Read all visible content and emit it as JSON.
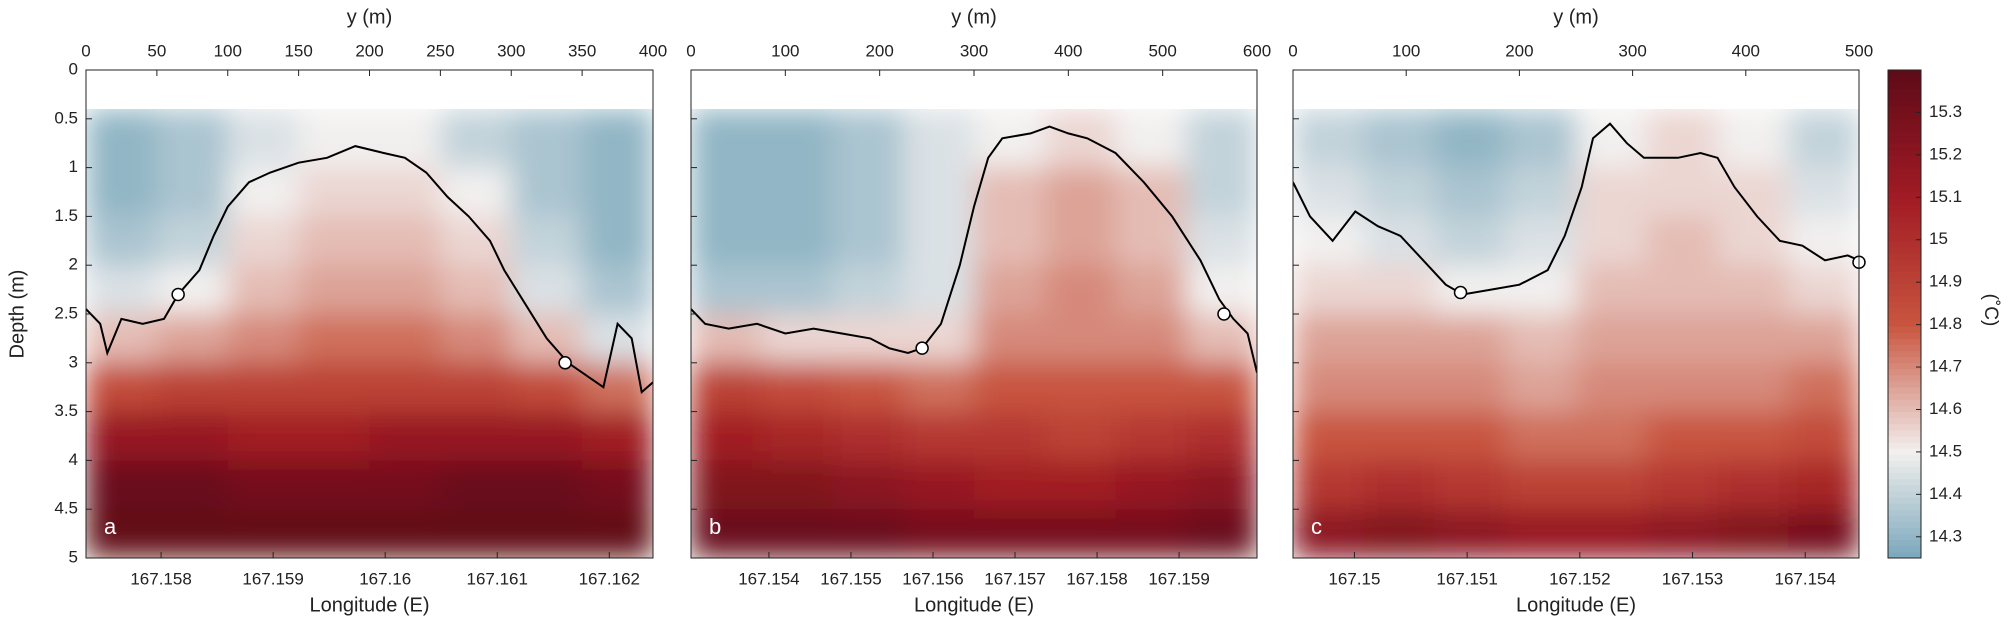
{
  "chart_data": [
    {
      "type": "heatmap",
      "panel_label": "a",
      "xlabel": "y (m)",
      "x2label": "Longitude (E)",
      "ylabel": "Depth (m)",
      "ytick_labels": true,
      "xlim": [
        0,
        400
      ],
      "xticks": [
        0,
        50,
        100,
        150,
        200,
        250,
        300,
        350,
        400
      ],
      "lonlim": [
        167.15733,
        167.16239
      ],
      "lonticks": [
        167.158,
        167.159,
        167.16,
        167.161,
        167.162
      ],
      "ylim": [
        0,
        5
      ],
      "yticks": [
        0,
        0.5,
        1,
        1.5,
        2,
        2.5,
        3,
        3.5,
        4,
        4.5,
        5
      ],
      "x_edges": [
        0,
        50,
        100,
        150,
        200,
        250,
        300,
        350,
        400
      ],
      "depth_edges": [
        0.4,
        1,
        1.5,
        2,
        2.5,
        3,
        3.5,
        4,
        4.5,
        5
      ],
      "temperature": [
        [
          14.3,
          14.35,
          14.45,
          14.5,
          14.5,
          14.4,
          14.35,
          14.3
        ],
        [
          14.3,
          14.35,
          14.5,
          14.55,
          14.55,
          14.5,
          14.35,
          14.3
        ],
        [
          14.35,
          14.4,
          14.55,
          14.6,
          14.6,
          14.55,
          14.4,
          14.3
        ],
        [
          14.45,
          14.5,
          14.6,
          14.65,
          14.65,
          14.6,
          14.45,
          14.35
        ],
        [
          14.6,
          14.65,
          14.7,
          14.75,
          14.75,
          14.7,
          14.6,
          14.45
        ],
        [
          14.85,
          14.9,
          14.9,
          14.9,
          14.9,
          14.9,
          14.85,
          14.75
        ],
        [
          15.15,
          15.15,
          15.1,
          15.1,
          15.15,
          15.15,
          15.15,
          15.1
        ],
        [
          15.35,
          15.35,
          15.3,
          15.3,
          15.3,
          15.35,
          15.35,
          15.3
        ],
        [
          15.38,
          15.38,
          15.38,
          15.38,
          15.38,
          15.38,
          15.38,
          15.38
        ]
      ],
      "contour": {
        "color": "#000000",
        "x": [
          0,
          10,
          15,
          25,
          40,
          55,
          65,
          80,
          90,
          100,
          115,
          130,
          150,
          170,
          190,
          210,
          225,
          240,
          255,
          270,
          285,
          295,
          310,
          325,
          340,
          355,
          365,
          375,
          385,
          392,
          400
        ],
        "depth": [
          2.45,
          2.6,
          2.9,
          2.55,
          2.6,
          2.55,
          2.3,
          2.05,
          1.7,
          1.4,
          1.15,
          1.05,
          0.95,
          0.9,
          0.78,
          0.85,
          0.9,
          1.05,
          1.3,
          1.5,
          1.75,
          2.05,
          2.4,
          2.75,
          3.0,
          3.15,
          3.25,
          2.6,
          2.75,
          3.3,
          3.2
        ]
      },
      "markers": {
        "x": [
          65,
          338
        ],
        "depth": [
          2.3,
          3.0
        ]
      }
    },
    {
      "type": "heatmap",
      "panel_label": "b",
      "xlabel": "y (m)",
      "x2label": "Longitude (E)",
      "ytick_labels": false,
      "xlim": [
        0,
        600
      ],
      "xticks": [
        0,
        100,
        200,
        300,
        400,
        500,
        600
      ],
      "lonlim": [
        167.15305,
        167.15995
      ],
      "lonticks": [
        167.154,
        167.155,
        167.156,
        167.157,
        167.158,
        167.159
      ],
      "ylim": [
        0,
        5
      ],
      "yticks": [
        0,
        0.5,
        1,
        1.5,
        2,
        2.5,
        3,
        3.5,
        4,
        4.5,
        5
      ],
      "x_edges": [
        0,
        75,
        150,
        225,
        300,
        375,
        450,
        525,
        600
      ],
      "depth_edges": [
        0.4,
        1,
        1.5,
        2,
        2.5,
        3,
        3.5,
        4,
        4.5,
        5
      ],
      "temperature": [
        [
          14.3,
          14.3,
          14.35,
          14.45,
          14.5,
          14.55,
          14.5,
          14.4
        ],
        [
          14.3,
          14.3,
          14.35,
          14.45,
          14.6,
          14.65,
          14.6,
          14.4
        ],
        [
          14.3,
          14.3,
          14.35,
          14.45,
          14.6,
          14.65,
          14.6,
          14.45
        ],
        [
          14.35,
          14.35,
          14.4,
          14.45,
          14.65,
          14.7,
          14.65,
          14.5
        ],
        [
          14.6,
          14.55,
          14.55,
          14.55,
          14.7,
          14.7,
          14.7,
          14.6
        ],
        [
          14.9,
          14.85,
          14.8,
          14.75,
          14.8,
          14.8,
          14.8,
          14.8
        ],
        [
          15.1,
          15.05,
          15.0,
          14.95,
          14.95,
          14.9,
          14.95,
          15.0
        ],
        [
          15.25,
          15.25,
          15.2,
          15.15,
          15.1,
          15.1,
          15.15,
          15.2
        ],
        [
          15.35,
          15.35,
          15.35,
          15.3,
          15.3,
          15.3,
          15.3,
          15.35
        ]
      ],
      "contour": {
        "color": "#000000",
        "x": [
          0,
          15,
          40,
          70,
          100,
          130,
          160,
          190,
          210,
          230,
          245,
          265,
          285,
          300,
          315,
          330,
          360,
          380,
          400,
          420,
          450,
          480,
          510,
          540,
          560,
          575,
          590,
          600
        ],
        "depth": [
          2.45,
          2.6,
          2.65,
          2.6,
          2.7,
          2.65,
          2.7,
          2.75,
          2.85,
          2.9,
          2.85,
          2.6,
          2.0,
          1.4,
          0.9,
          0.7,
          0.65,
          0.58,
          0.65,
          0.7,
          0.85,
          1.15,
          1.5,
          1.95,
          2.35,
          2.55,
          2.7,
          3.1
        ]
      },
      "markers": {
        "x": [
          245,
          565
        ],
        "depth": [
          2.85,
          2.5
        ]
      }
    },
    {
      "type": "heatmap",
      "panel_label": "c",
      "xlabel": "y (m)",
      "x2label": "Longitude (E)",
      "ytick_labels": false,
      "xlim": [
        0,
        500
      ],
      "xticks": [
        0,
        100,
        200,
        300,
        400,
        500
      ],
      "lonlim": [
        167.149455,
        167.154477
      ],
      "lonticks": [
        167.15,
        167.151,
        167.152,
        167.153,
        167.154
      ],
      "ylim": [
        0,
        5
      ],
      "yticks": [
        0,
        0.5,
        1,
        1.5,
        2,
        2.5,
        3,
        3.5,
        4,
        4.5,
        5
      ],
      "x_edges": [
        0,
        62.5,
        125,
        187.5,
        250,
        312.5,
        375,
        437.5,
        500
      ],
      "depth_edges": [
        0.4,
        1,
        1.5,
        2,
        2.5,
        3,
        3.5,
        4,
        4.5,
        5
      ],
      "temperature": [
        [
          14.4,
          14.35,
          14.3,
          14.35,
          14.5,
          14.55,
          14.5,
          14.4
        ],
        [
          14.45,
          14.4,
          14.35,
          14.4,
          14.55,
          14.55,
          14.55,
          14.45
        ],
        [
          14.5,
          14.45,
          14.4,
          14.45,
          14.55,
          14.6,
          14.55,
          14.5
        ],
        [
          14.55,
          14.55,
          14.5,
          14.5,
          14.6,
          14.6,
          14.6,
          14.55
        ],
        [
          14.65,
          14.65,
          14.65,
          14.6,
          14.65,
          14.65,
          14.65,
          14.65
        ],
        [
          14.7,
          14.7,
          14.7,
          14.65,
          14.7,
          14.7,
          14.7,
          14.75
        ],
        [
          14.8,
          14.8,
          14.8,
          14.75,
          14.75,
          14.8,
          14.8,
          14.85
        ],
        [
          14.95,
          15.0,
          14.95,
          14.9,
          14.9,
          14.95,
          15.0,
          15.05
        ],
        [
          15.2,
          15.25,
          15.2,
          15.15,
          15.15,
          15.2,
          15.25,
          15.3
        ]
      ],
      "contour": {
        "color": "#000000",
        "x": [
          0,
          15,
          35,
          55,
          75,
          95,
          115,
          135,
          150,
          175,
          200,
          225,
          240,
          255,
          265,
          280,
          295,
          310,
          340,
          360,
          375,
          390,
          410,
          430,
          450,
          470,
          490,
          500
        ],
        "depth": [
          1.15,
          1.5,
          1.75,
          1.45,
          1.6,
          1.7,
          1.95,
          2.2,
          2.3,
          2.25,
          2.2,
          2.05,
          1.7,
          1.2,
          0.7,
          0.55,
          0.75,
          0.9,
          0.9,
          0.85,
          0.9,
          1.2,
          1.5,
          1.75,
          1.8,
          1.95,
          1.9,
          1.95
        ]
      },
      "markers": {
        "x": [
          148,
          500
        ],
        "depth": [
          2.28,
          1.97
        ]
      }
    }
  ],
  "colorbar": {
    "label": "(˚C)",
    "clim": [
      14.25,
      15.4
    ],
    "ticks": [
      14.3,
      14.4,
      14.5,
      14.6,
      14.7,
      14.8,
      14.9,
      15,
      15.1,
      15.2,
      15.3
    ],
    "stops": [
      {
        "value": 14.25,
        "color": "#7aa7bb"
      },
      {
        "value": 14.5,
        "color": "#f2f0ef"
      },
      {
        "value": 14.8,
        "color": "#c8553f"
      },
      {
        "value": 15.1,
        "color": "#a11b24"
      },
      {
        "value": 15.4,
        "color": "#5e0b18"
      }
    ]
  }
}
